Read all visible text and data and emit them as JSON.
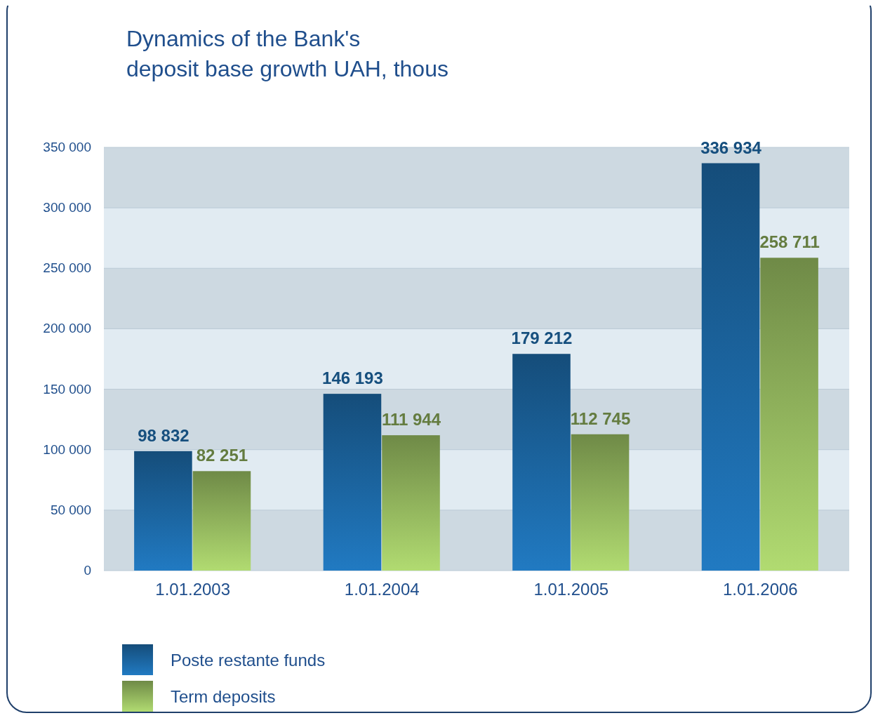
{
  "chart_data": {
    "type": "bar",
    "title": "Dynamics of the Bank's\ndeposit base growth UAH, thous",
    "categories": [
      "1.01.2003",
      "1.01.2004",
      "1.01.2005",
      "1.01.2006"
    ],
    "series": [
      {
        "name": "Poste restante funds",
        "color": "#1a5f97",
        "values": [
          98832,
          146193,
          179212,
          336934
        ]
      },
      {
        "name": "Term deposits",
        "color": "#8aab58",
        "values": [
          82251,
          111944,
          112745,
          258711
        ]
      }
    ],
    "ylim": [
      0,
      350000
    ],
    "yticks": [
      0,
      {
        "value": 50000,
        "label": "50 000"
      },
      {
        "value": 100000,
        "label": "100 000"
      },
      {
        "value": 150000,
        "label": "150 000"
      },
      {
        "value": 200000,
        "label": "200 000"
      },
      {
        "value": 250000,
        "label": "250 000"
      },
      {
        "value": 300000,
        "label": "300 000"
      },
      {
        "value": 350000,
        "label": "350 000"
      }
    ],
    "grid": "y",
    "legend": "bottom left",
    "data_labels": true
  }
}
